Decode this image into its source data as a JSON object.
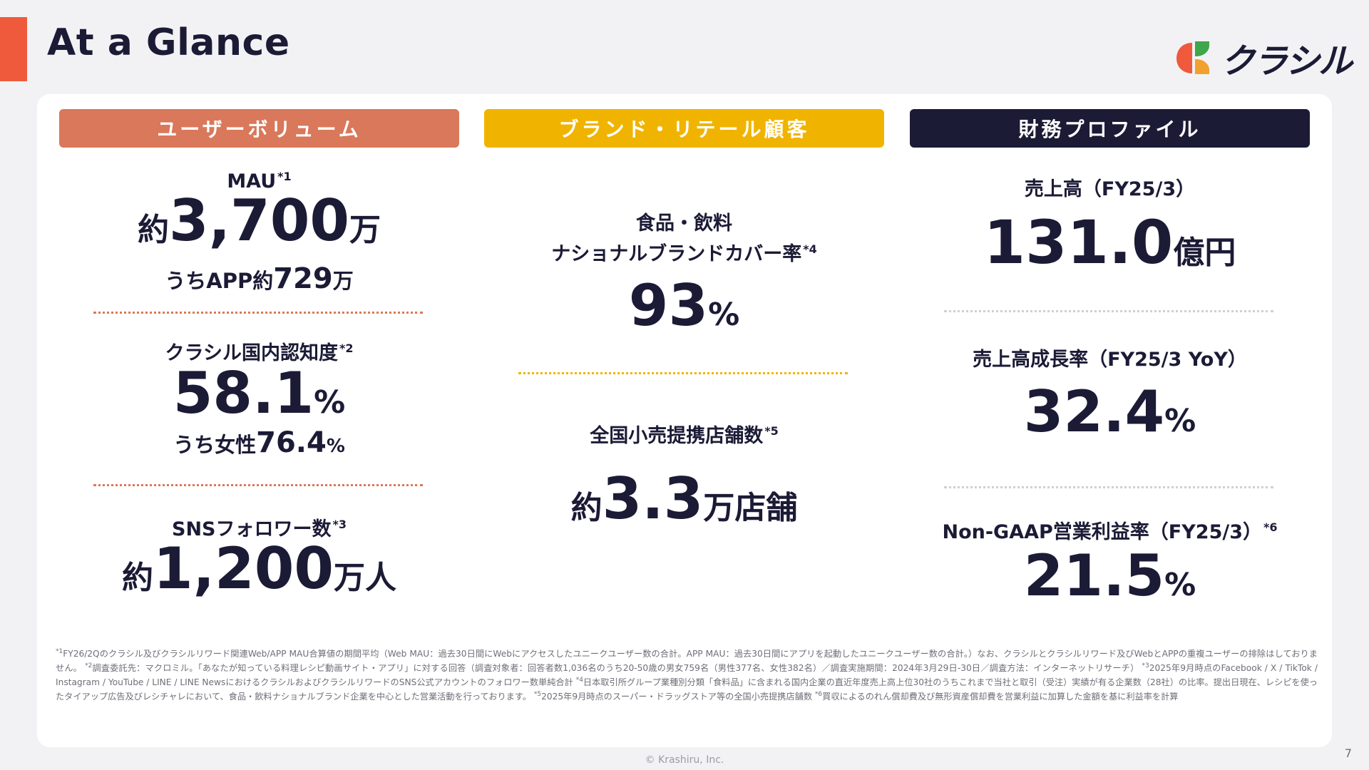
{
  "header": {
    "title": "At a Glance",
    "logo_text": "クラシル"
  },
  "colors": {
    "accent": "#ee5a3b",
    "orange": "#d9785a",
    "yellow": "#f0b400",
    "navy": "#1c1b36"
  },
  "columns": {
    "user": {
      "header": "ユーザーボリューム",
      "mau": {
        "label": "MAU",
        "note": "*1",
        "prefix": "約",
        "value": "3,700",
        "unit": "万",
        "sub_prefix": "うちAPP約",
        "sub_value": "729",
        "sub_unit": "万"
      },
      "awareness": {
        "label": "クラシル国内認知度",
        "note": "*2",
        "value": "58.1",
        "unit": "%",
        "sub_prefix": "うち女性",
        "sub_value": "76.4",
        "sub_unit": "%"
      },
      "sns": {
        "label": "SNSフォロワー数",
        "note": "*3",
        "prefix": "約",
        "value": "1,200",
        "unit": "万人"
      }
    },
    "brand": {
      "header": "ブランド・リテール顧客",
      "cover": {
        "label1": "食品・飲料",
        "label2": "ナショナルブランドカバー率",
        "note": "*4",
        "value": "93",
        "unit": "%"
      },
      "stores": {
        "label": "全国小売提携店舗数",
        "note": "*5",
        "prefix": "約",
        "value": "3.3",
        "unit": "万店舗"
      }
    },
    "finance": {
      "header": "財務プロファイル",
      "revenue": {
        "label": "売上高（FY25/3）",
        "value": "131.0",
        "unit": "億円"
      },
      "growth": {
        "label": "売上高成長率（FY25/3 YoY）",
        "value": "32.4",
        "unit": "%"
      },
      "margin": {
        "label": "Non-GAAP営業利益率（FY25/3）",
        "note": "*6",
        "value": "21.5",
        "unit": "%"
      }
    }
  },
  "footnotes": {
    "n1_mark": "*1",
    "n1": "FY26/2Qのクラシル及びクラシルリワード関連Web/APP MAU合算値の期間平均（Web MAU：過去30日間にWebにアクセスしたユニークユーザー数の合計。APP MAU：過去30日間にアプリを起動したユニークユーザー数の合計。）なお、クラシルとクラシルリワード及びWebとAPPの重複ユーザーの排除はしておりません。",
    "n2_mark": "*2",
    "n2": "調査委託先：マクロミル。「あなたが知っている料理レシピ動画サイト・アプリ」に対する回答（調査対象者：回答者数1,036名のうち20-50歳の男女759名（男性377名、女性382名）／調査実施期間：2024年3月29日-30日／調査方法：インターネットリサーチ）",
    "n3_mark": "*3",
    "n3": "2025年9月時点のFacebook / X / TikTok / Instagram / YouTube / LINE / LINE NewsにおけるクラシルおよびクラシルリワードのSNS公式アカウントのフォロワー数単純合計",
    "n4_mark": "*4",
    "n4": "日本取引所グループ業種別分類「食料品」に含まれる国内企業の直近年度売上高上位30社のうちこれまで当社と取引（受注）実績が有る企業数（28社）の比率。提出日現在、レシピを使ったタイアップ広告及びレシチャレにおいて、食品・飲料ナショナルブランド企業を中心とした営業活動を行っております。",
    "n5_mark": "*5",
    "n5": "2025年9月時点のスーパー・ドラッグストア等の全国小売提携店舗数",
    "n6_mark": "*6",
    "n6": "買収によるのれん償却費及び無形資産償却費を営業利益に加算した金額を基に利益率を計算"
  },
  "footer": {
    "copyright": "© Krashiru, Inc.",
    "page": "7"
  }
}
